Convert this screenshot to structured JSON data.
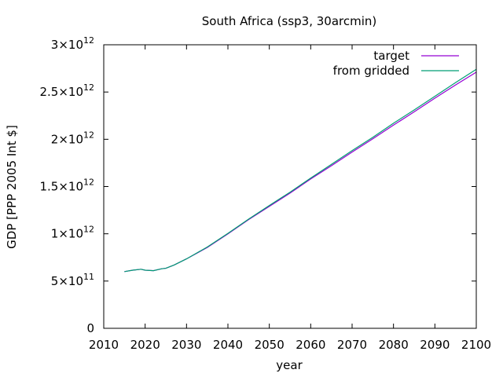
{
  "chart_data": {
    "type": "line",
    "title": "South Africa (ssp3, 30arcmin)",
    "xlabel": "year",
    "ylabel": "GDP [PPP 2005 Int $]",
    "xlim": [
      2010,
      2100
    ],
    "ylim": [
      0,
      3000000000000
    ],
    "x_ticks": [
      2010,
      2020,
      2030,
      2040,
      2050,
      2060,
      2070,
      2080,
      2090,
      2100
    ],
    "y_ticks": [
      {
        "value": 0,
        "mantissa": "0",
        "exponent": ""
      },
      {
        "value": 500000000000,
        "mantissa": "5×10",
        "exponent": "11"
      },
      {
        "value": 1000000000000,
        "mantissa": "1×10",
        "exponent": "12"
      },
      {
        "value": 1500000000000,
        "mantissa": "1.5×10",
        "exponent": "12"
      },
      {
        "value": 2000000000000,
        "mantissa": "2×10",
        "exponent": "12"
      },
      {
        "value": 2500000000000,
        "mantissa": "2.5×10",
        "exponent": "12"
      },
      {
        "value": 3000000000000,
        "mantissa": "3×10",
        "exponent": "12"
      }
    ],
    "grid": false,
    "legend_position": "top-right",
    "series": [
      {
        "name": "target",
        "color": "#9400d3",
        "x": [
          2015,
          2017,
          2019,
          2020,
          2022,
          2024,
          2025,
          2027,
          2030,
          2035,
          2040,
          2045,
          2050,
          2055,
          2060,
          2065,
          2070,
          2075,
          2080,
          2085,
          2090,
          2095,
          2100
        ],
        "y": [
          600000000000.0,
          615000000000.0,
          625000000000.0,
          615000000000.0,
          610000000000.0,
          630000000000.0,
          635000000000.0,
          670000000000.0,
          735000000000.0,
          855000000000.0,
          1000000000000.0,
          1150000000000.0,
          1290000000000.0,
          1430000000000.0,
          1580000000000.0,
          1720000000000.0,
          1865000000000.0,
          2005000000000.0,
          2150000000000.0,
          2290000000000.0,
          2435000000000.0,
          2575000000000.0,
          2710000000000.0
        ]
      },
      {
        "name": "from gridded",
        "color": "#009e73",
        "x": [
          2015,
          2017,
          2019,
          2020,
          2022,
          2024,
          2025,
          2027,
          2030,
          2035,
          2040,
          2045,
          2050,
          2055,
          2060,
          2065,
          2070,
          2075,
          2080,
          2085,
          2090,
          2095,
          2100
        ],
        "y": [
          600000000000.0,
          615000000000.0,
          625000000000.0,
          615000000000.0,
          610000000000.0,
          630000000000.0,
          635000000000.0,
          670000000000.0,
          735000000000.0,
          860000000000.0,
          1005000000000.0,
          1155000000000.0,
          1300000000000.0,
          1440000000000.0,
          1590000000000.0,
          1735000000000.0,
          1880000000000.0,
          2020000000000.0,
          2170000000000.0,
          2310000000000.0,
          2455000000000.0,
          2600000000000.0,
          2740000000000.0
        ]
      }
    ]
  }
}
